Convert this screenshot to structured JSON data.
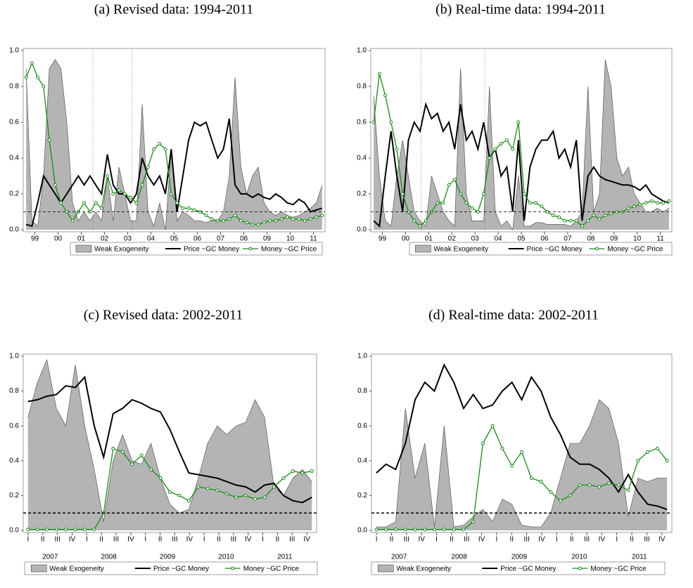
{
  "chart_data": [
    {
      "type": "line",
      "title": "(a) Revised data: 1994-2011",
      "xlim": [
        -0.5,
        51.5
      ],
      "xticks": [
        {
          "value": 1.5,
          "label": "99"
        },
        {
          "value": 5.5,
          "label": "00"
        },
        {
          "value": 9.5,
          "label": "01"
        },
        {
          "value": 13.5,
          "label": "02"
        },
        {
          "value": 17.5,
          "label": "03"
        },
        {
          "value": 21.5,
          "label": "04"
        },
        {
          "value": 25.5,
          "label": "05"
        },
        {
          "value": 29.5,
          "label": "06"
        },
        {
          "value": 33.5,
          "label": "07"
        },
        {
          "value": 37.5,
          "label": "08"
        },
        {
          "value": 41.5,
          "label": "09"
        },
        {
          "value": 45.5,
          "label": "10"
        },
        {
          "value": 49.5,
          "label": "11"
        }
      ],
      "ylim": [
        0,
        1
      ],
      "yticks": [
        {
          "value": 0,
          "label": "0.0"
        },
        0.2,
        0.4,
        0.6,
        0.8,
        {
          "value": 1,
          "label": "1.0"
        }
      ],
      "hline": 0.1,
      "vlines": [
        11.5,
        18.2
      ],
      "series": [
        {
          "name": "Weak Exogeneity",
          "color": "#b4b4b4",
          "style": "area",
          "values": [
            0.9,
            0.05,
            0.02,
            0.3,
            0.9,
            0.95,
            0.9,
            0.6,
            0.15,
            0.05,
            0.1,
            0.05,
            0.1,
            0.05,
            0.3,
            0.05,
            0.35,
            0.2,
            0.05,
            0.05,
            0.7,
            0.1,
            0.02,
            0.15,
            0.0,
            0.45,
            0.05,
            0.1,
            0.08,
            0.05,
            0.05,
            0.04,
            0.05,
            0.05,
            0.1,
            0.3,
            0.85,
            0.35,
            0.2,
            0.3,
            0.35,
            0.15,
            0.1,
            0.08,
            0.1,
            0.08,
            0.07,
            0.08,
            0.1,
            0.12,
            0.15,
            0.25
          ]
        },
        {
          "name": "Price ~GC Money",
          "color": "#000000",
          "style": "line",
          "values": [
            0.03,
            0.02,
            0.15,
            0.3,
            0.25,
            0.2,
            0.15,
            0.2,
            0.25,
            0.3,
            0.25,
            0.3,
            0.25,
            0.2,
            0.42,
            0.25,
            0.2,
            0.2,
            0.15,
            0.2,
            0.4,
            0.3,
            0.25,
            0.3,
            0.2,
            0.45,
            0.1,
            0.3,
            0.5,
            0.6,
            0.58,
            0.6,
            0.5,
            0.4,
            0.45,
            0.62,
            0.25,
            0.2,
            0.2,
            0.18,
            0.2,
            0.18,
            0.17,
            0.2,
            0.18,
            0.15,
            0.14,
            0.17,
            0.15,
            0.1,
            0.11,
            0.12
          ]
        },
        {
          "name": "Money ~GC Price",
          "color": "#1a8a1a",
          "style": "line-markers",
          "values": [
            0.85,
            0.93,
            0.85,
            0.8,
            0.5,
            0.25,
            0.15,
            0.1,
            0.05,
            0.1,
            0.15,
            0.1,
            0.15,
            0.12,
            0.3,
            0.2,
            0.22,
            0.2,
            0.18,
            0.15,
            0.25,
            0.35,
            0.45,
            0.48,
            0.45,
            0.2,
            0.15,
            0.12,
            0.12,
            0.11,
            0.1,
            0.08,
            0.06,
            0.05,
            0.05,
            0.06,
            0.08,
            0.05,
            0.04,
            0.03,
            0.03,
            0.04,
            0.05,
            0.05,
            0.06,
            0.07,
            0.06,
            0.06,
            0.05,
            0.06,
            0.07,
            0.08
          ]
        }
      ]
    },
    {
      "type": "line",
      "title": "(b) Real-time data: 1994-2011",
      "xlim": [
        -0.5,
        51.5
      ],
      "xticks": [
        {
          "value": 1.5,
          "label": "99"
        },
        {
          "value": 5.5,
          "label": "00"
        },
        {
          "value": 9.5,
          "label": "01"
        },
        {
          "value": 13.5,
          "label": "02"
        },
        {
          "value": 17.5,
          "label": "03"
        },
        {
          "value": 21.5,
          "label": "04"
        },
        {
          "value": 25.5,
          "label": "05"
        },
        {
          "value": 29.5,
          "label": "06"
        },
        {
          "value": 33.5,
          "label": "07"
        },
        {
          "value": 37.5,
          "label": "08"
        },
        {
          "value": 41.5,
          "label": "09"
        },
        {
          "value": 45.5,
          "label": "10"
        },
        {
          "value": 49.5,
          "label": "11"
        }
      ],
      "ylim": [
        0,
        1
      ],
      "yticks": [
        {
          "value": 0,
          "label": "0.0"
        },
        0.2,
        0.4,
        0.6,
        0.8,
        {
          "value": 1,
          "label": "1.0"
        }
      ],
      "hline": 0.1,
      "vlines": [
        8.2,
        19.2
      ],
      "series": [
        {
          "name": "Weak Exogeneity",
          "color": "#b4b4b4",
          "style": "area",
          "values": [
            0.75,
            0.3,
            0.05,
            0.02,
            0.3,
            0.5,
            0.3,
            0.1,
            0.05,
            0.02,
            0.3,
            0.2,
            0.1,
            0.05,
            0.02,
            0.9,
            0.2,
            0.05,
            0.05,
            0.05,
            0.8,
            0.1,
            0.02,
            0.05,
            0.0,
            0.3,
            0.02,
            0.02,
            0.04,
            0.04,
            0.03,
            0.03,
            0.03,
            0.03,
            0.02,
            0.05,
            0.1,
            0.8,
            0.1,
            0.2,
            0.95,
            0.8,
            0.4,
            0.3,
            0.35,
            0.2,
            0.15,
            0.1,
            0.1,
            0.12,
            0.1,
            0.12
          ]
        },
        {
          "name": "Price ~GC Money",
          "color": "#000000",
          "style": "line",
          "values": [
            0.05,
            0.02,
            0.3,
            0.55,
            0.3,
            0.1,
            0.5,
            0.6,
            0.55,
            0.7,
            0.62,
            0.65,
            0.55,
            0.6,
            0.45,
            0.7,
            0.5,
            0.55,
            0.45,
            0.6,
            0.4,
            0.45,
            0.3,
            0.35,
            0.1,
            0.5,
            0.05,
            0.35,
            0.45,
            0.5,
            0.5,
            0.55,
            0.4,
            0.45,
            0.35,
            0.5,
            0.05,
            0.3,
            0.35,
            0.3,
            0.28,
            0.27,
            0.26,
            0.25,
            0.25,
            0.24,
            0.22,
            0.25,
            0.2,
            0.18,
            0.16,
            0.15
          ]
        },
        {
          "name": "Money ~GC Price",
          "color": "#1a8a1a",
          "style": "line-markers",
          "values": [
            0.6,
            0.87,
            0.75,
            0.6,
            0.45,
            0.2,
            0.1,
            0.05,
            0.02,
            0.05,
            0.1,
            0.15,
            0.15,
            0.25,
            0.28,
            0.2,
            0.15,
            0.12,
            0.1,
            0.2,
            0.4,
            0.45,
            0.48,
            0.5,
            0.45,
            0.6,
            0.2,
            0.15,
            0.15,
            0.13,
            0.1,
            0.08,
            0.07,
            0.05,
            0.05,
            0.05,
            0.02,
            0.05,
            0.08,
            0.06,
            0.08,
            0.09,
            0.1,
            0.1,
            0.12,
            0.13,
            0.14,
            0.15,
            0.16,
            0.15,
            0.15,
            0.16
          ]
        }
      ]
    },
    {
      "type": "line",
      "title": "(c) Revised data: 2002-2011",
      "xlim": [
        0,
        30
      ],
      "xticks": [
        {
          "value": 0.5,
          "label": "I"
        },
        {
          "value": 2,
          "label": "II"
        },
        {
          "value": 3.5,
          "label": "III"
        },
        {
          "value": 5,
          "label": "IV"
        },
        {
          "value": 6.5,
          "label": "I"
        },
        {
          "value": 8,
          "label": "II"
        },
        {
          "value": 9.5,
          "label": "III"
        },
        {
          "value": 11,
          "label": "IV"
        },
        {
          "value": 12.5,
          "label": "I"
        },
        {
          "value": 14,
          "label": "II"
        },
        {
          "value": 15.5,
          "label": "III"
        },
        {
          "value": 17,
          "label": "IV"
        },
        {
          "value": 18.5,
          "label": "I"
        },
        {
          "value": 20,
          "label": "II"
        },
        {
          "value": 21.5,
          "label": "III"
        },
        {
          "value": 23,
          "label": "IV"
        },
        {
          "value": 24.5,
          "label": "I"
        },
        {
          "value": 26,
          "label": "II"
        },
        {
          "value": 27.5,
          "label": "III"
        },
        {
          "value": 29,
          "label": "IV"
        }
      ],
      "xgroups": [
        {
          "value": 2.75,
          "label": "2007"
        },
        {
          "value": 8.75,
          "label": "2008"
        },
        {
          "value": 14.75,
          "label": "2009"
        },
        {
          "value": 20.75,
          "label": "2010"
        },
        {
          "value": 26.75,
          "label": "2011"
        }
      ],
      "ylim": [
        0,
        1
      ],
      "yticks": [
        {
          "value": 0,
          "label": "0.0"
        },
        0.2,
        0.4,
        0.6,
        0.8,
        {
          "value": 1,
          "label": "1.0"
        }
      ],
      "hline": 0.1,
      "series": [
        {
          "name": "Weak Exogeneity",
          "color": "#b4b4b4",
          "style": "area",
          "values": [
            0.65,
            0.85,
            0.98,
            0.7,
            0.6,
            0.95,
            0.6,
            0.35,
            0.05,
            0.4,
            0.55,
            0.4,
            0.38,
            0.5,
            0.3,
            0.15,
            0.1,
            0.12,
            0.3,
            0.5,
            0.6,
            0.55,
            0.6,
            0.62,
            0.75,
            0.65,
            0.25,
            0.2,
            0.3,
            0.35,
            0.28
          ]
        },
        {
          "name": "Price ~GC Money",
          "color": "#000000",
          "style": "line",
          "values": [
            0.74,
            0.75,
            0.77,
            0.78,
            0.83,
            0.82,
            0.88,
            0.6,
            0.42,
            0.67,
            0.7,
            0.75,
            0.73,
            0.7,
            0.68,
            0.58,
            0.45,
            0.33,
            0.32,
            0.31,
            0.3,
            0.28,
            0.26,
            0.25,
            0.22,
            0.26,
            0.27,
            0.2,
            0.17,
            0.16,
            0.19
          ]
        },
        {
          "name": "Money ~GC Price",
          "color": "#1a8a1a",
          "style": "line-markers",
          "values": [
            0.005,
            0.005,
            0.005,
            0.005,
            0.005,
            0.005,
            0.005,
            0.005,
            0.1,
            0.47,
            0.45,
            0.38,
            0.43,
            0.35,
            0.3,
            0.22,
            0.2,
            0.17,
            0.25,
            0.24,
            0.23,
            0.21,
            0.19,
            0.2,
            0.18,
            0.19,
            0.25,
            0.3,
            0.34,
            0.33,
            0.34
          ]
        }
      ]
    },
    {
      "type": "line",
      "title": "(d) Real-time data: 2002-2011",
      "xlim": [
        0,
        30
      ],
      "xticks": [
        {
          "value": 0.5,
          "label": "I"
        },
        {
          "value": 2,
          "label": "II"
        },
        {
          "value": 3.5,
          "label": "III"
        },
        {
          "value": 5,
          "label": "IV"
        },
        {
          "value": 6.5,
          "label": "I"
        },
        {
          "value": 8,
          "label": "II"
        },
        {
          "value": 9.5,
          "label": "III"
        },
        {
          "value": 11,
          "label": "IV"
        },
        {
          "value": 12.5,
          "label": "I"
        },
        {
          "value": 14,
          "label": "II"
        },
        {
          "value": 15.5,
          "label": "III"
        },
        {
          "value": 17,
          "label": "IV"
        },
        {
          "value": 18.5,
          "label": "I"
        },
        {
          "value": 20,
          "label": "II"
        },
        {
          "value": 21.5,
          "label": "III"
        },
        {
          "value": 23,
          "label": "IV"
        },
        {
          "value": 24.5,
          "label": "I"
        },
        {
          "value": 26,
          "label": "II"
        },
        {
          "value": 27.5,
          "label": "III"
        },
        {
          "value": 29,
          "label": "IV"
        }
      ],
      "xgroups": [
        {
          "value": 2.75,
          "label": "2007"
        },
        {
          "value": 8.75,
          "label": "2008"
        },
        {
          "value": 14.75,
          "label": "2009"
        },
        {
          "value": 20.75,
          "label": "2010"
        },
        {
          "value": 26.75,
          "label": "2011"
        }
      ],
      "ylim": [
        0,
        1
      ],
      "yticks": [
        {
          "value": 0,
          "label": "0.0"
        },
        0.2,
        0.4,
        0.6,
        0.8,
        {
          "value": 1,
          "label": "1.0"
        }
      ],
      "hline": 0.1,
      "series": [
        {
          "name": "Weak Exogeneity",
          "color": "#b4b4b4",
          "style": "area",
          "values": [
            0.02,
            0.02,
            0.05,
            0.7,
            0.3,
            0.5,
            0.02,
            0.6,
            0.02,
            0.03,
            0.08,
            0.12,
            0.05,
            0.18,
            0.15,
            0.03,
            0.02,
            0.02,
            0.1,
            0.3,
            0.5,
            0.5,
            0.6,
            0.75,
            0.7,
            0.5,
            0.08,
            0.3,
            0.28,
            0.3,
            0.3
          ]
        },
        {
          "name": "Price ~GC Money",
          "color": "#000000",
          "style": "line",
          "values": [
            0.33,
            0.38,
            0.35,
            0.5,
            0.75,
            0.85,
            0.8,
            0.95,
            0.85,
            0.7,
            0.78,
            0.7,
            0.72,
            0.8,
            0.85,
            0.75,
            0.88,
            0.8,
            0.65,
            0.55,
            0.42,
            0.38,
            0.38,
            0.35,
            0.3,
            0.22,
            0.32,
            0.22,
            0.15,
            0.14,
            0.12
          ]
        },
        {
          "name": "Money ~GC Price",
          "color": "#1a8a1a",
          "style": "line-markers",
          "values": [
            0.005,
            0.005,
            0.005,
            0.005,
            0.005,
            0.005,
            0.005,
            0.005,
            0.005,
            0.005,
            0.05,
            0.5,
            0.6,
            0.47,
            0.37,
            0.45,
            0.3,
            0.28,
            0.22,
            0.17,
            0.2,
            0.26,
            0.26,
            0.25,
            0.27,
            0.26,
            0.23,
            0.4,
            0.45,
            0.47,
            0.4
          ]
        }
      ]
    }
  ]
}
